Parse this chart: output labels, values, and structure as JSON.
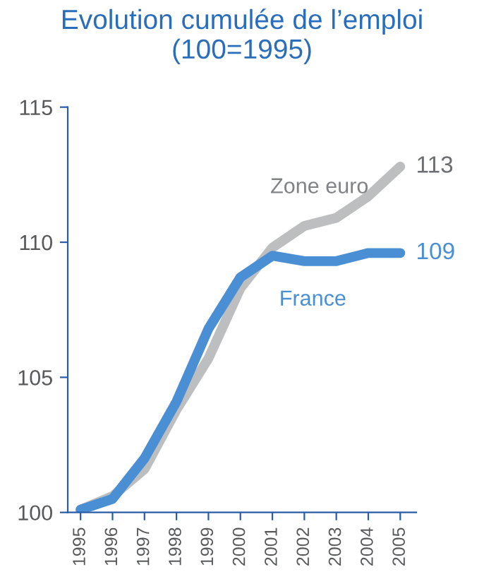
{
  "chart_data": {
    "type": "line",
    "title": "Evolution cumulée de l’emploi\n(100=1995)",
    "x": [
      1995,
      1996,
      1997,
      1998,
      1999,
      2000,
      2001,
      2002,
      2003,
      2004,
      2005
    ],
    "xlim": [
      1994.6,
      2005.5
    ],
    "xticks": [
      1995,
      1996,
      1997,
      1998,
      1999,
      2000,
      2001,
      2002,
      2003,
      2004,
      2005
    ],
    "ylim": [
      100,
      115
    ],
    "yticks": [
      100,
      105,
      110,
      115
    ],
    "grid": false,
    "legend": false,
    "marker": "none",
    "line_style": "solid",
    "series": [
      {
        "name": "France",
        "color": "#4a8fd4",
        "values": [
          100.1,
          100.5,
          102.0,
          104.1,
          106.8,
          108.7,
          109.5,
          109.3,
          109.3,
          109.6,
          109.6
        ]
      },
      {
        "name": "Zone euro",
        "color": "#bcbec0",
        "values": [
          100.1,
          100.6,
          101.6,
          103.8,
          105.7,
          108.3,
          109.8,
          110.6,
          110.9,
          111.7,
          112.8
        ]
      }
    ],
    "annotations": [
      {
        "text": "113",
        "x": 2005,
        "y": 112.8
      },
      {
        "text": "109",
        "x": 2005,
        "y": 109.6
      }
    ]
  }
}
